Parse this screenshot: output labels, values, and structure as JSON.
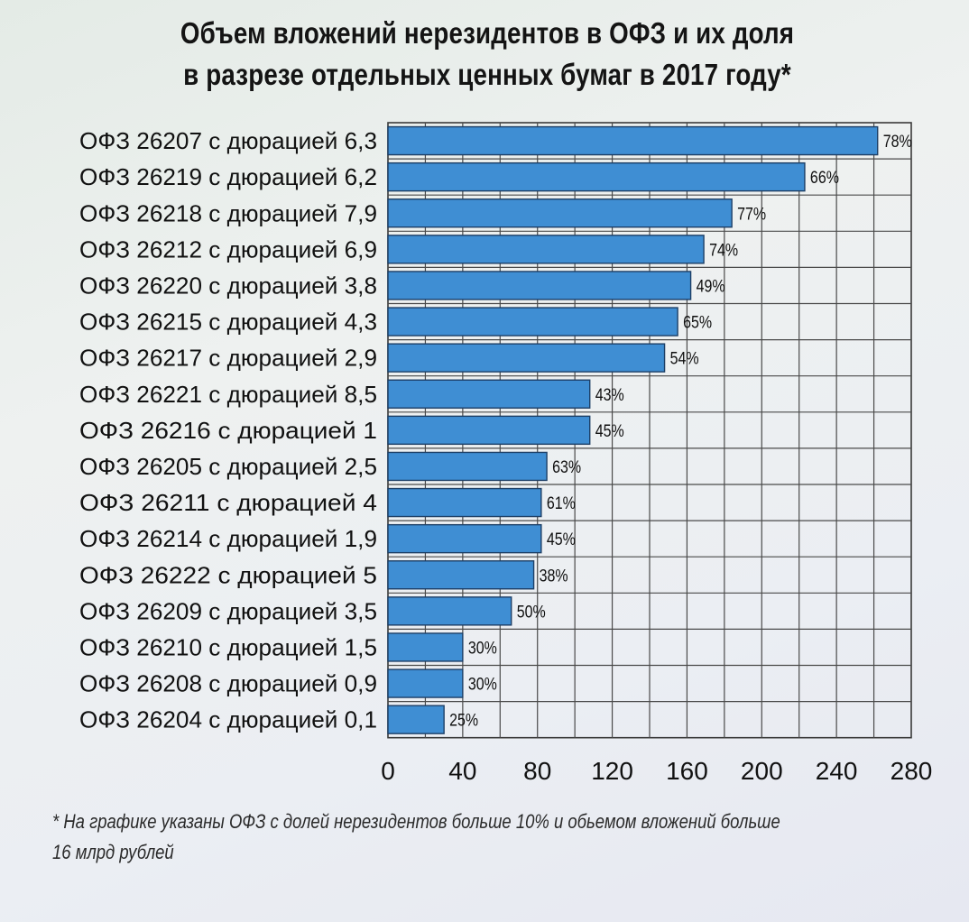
{
  "chart_data": {
    "type": "bar",
    "orientation": "horizontal",
    "title_lines": [
      "Объем вложений нерезидентов в ОФЗ и их доля",
      "в разрезе отдельных ценных бумаг в 2017 году*"
    ],
    "categories": [
      "ОФЗ 26207 с дюрацией 6,3",
      "ОФЗ 26219 с дюрацией 6,2",
      "ОФЗ 26218 с дюрацией 7,9",
      "ОФЗ 26212 с дюрацией 6,9",
      "ОФЗ 26220 с дюрацией 3,8",
      "ОФЗ 26215 с дюрацией 4,3",
      "ОФЗ 26217 с дюрацией 2,9",
      "ОФЗ 26221 с дюрацией 8,5",
      "ОФЗ 26216 с дюрацией 1",
      "ОФЗ 26205 с дюрацией 2,5",
      "ОФЗ 26211 с дюрацией 4",
      "ОФЗ 26214 с дюрацией 1,9",
      "ОФЗ 26222 с дюрацией 5",
      "ОФЗ 26209 с дюрацией 3,5",
      "ОФЗ 26210 с дюрацией 1,5",
      "ОФЗ 26208 с дюрацией 0,9",
      "ОФЗ 26204 с дюрацией 0,1"
    ],
    "values": [
      262,
      223,
      184,
      169,
      162,
      155,
      148,
      108,
      108,
      85,
      82,
      82,
      78,
      66,
      40,
      40,
      30
    ],
    "data_labels": [
      "78%",
      "66%",
      "77%",
      "74%",
      "49%",
      "65%",
      "54%",
      "43%",
      "45%",
      "63%",
      "61%",
      "45%",
      "38%",
      "50%",
      "30%",
      "30%",
      "25%"
    ],
    "xticks": [
      "0",
      "40",
      "80",
      "120",
      "160",
      "200",
      "240",
      "280"
    ],
    "xlim": [
      0,
      280
    ],
    "grid": true,
    "bar_color": "#3f8ed3",
    "footnote_lines": [
      "* На графике указаны ОФЗ с долей нерезидентов больше 10% и обьемом вложений больше",
      "16 млрд рублей"
    ]
  }
}
